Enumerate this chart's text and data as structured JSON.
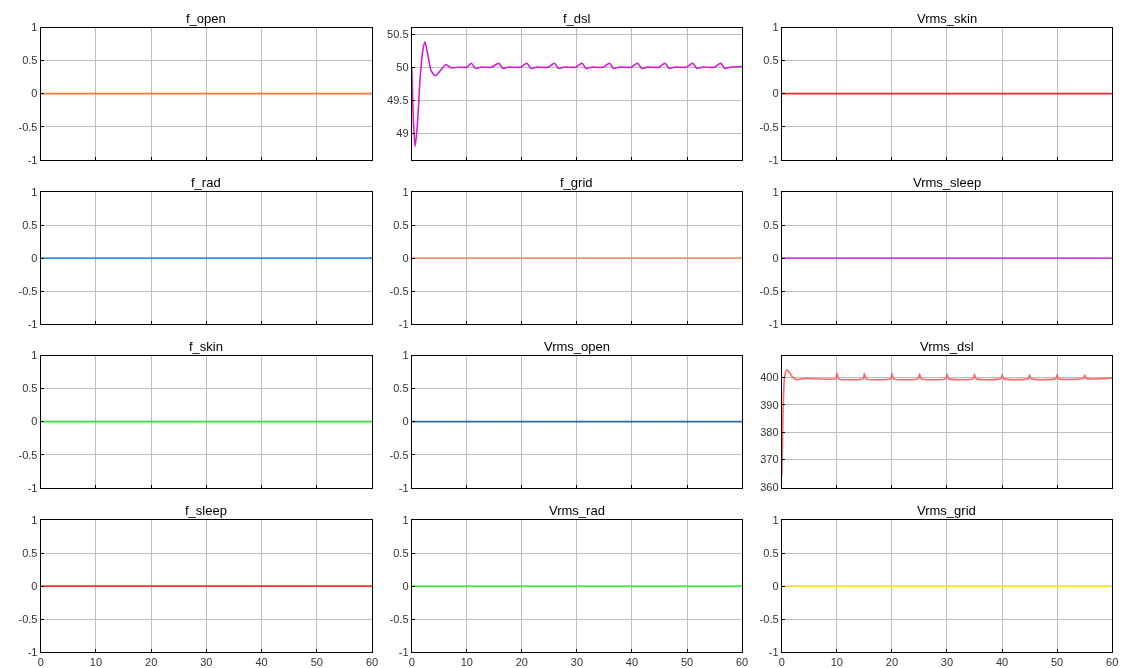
{
  "chart_data": [
    {
      "type": "line",
      "title": "f_open",
      "x": [
        0,
        60
      ],
      "series": [
        {
          "color": "#f07a35",
          "values": [
            0,
            0
          ]
        }
      ],
      "xlim": [
        0,
        60
      ],
      "xticks": [
        0,
        10,
        20,
        30,
        40,
        50,
        60
      ],
      "ylim": [
        -1,
        1
      ],
      "yticks": [
        -1,
        -0.5,
        0,
        0.5,
        1
      ],
      "grid": true,
      "tick_labels": "y"
    },
    {
      "type": "line",
      "title": "f_dsl",
      "x": [
        0,
        0.3,
        0.6,
        1.0,
        1.5,
        2.0,
        2.4,
        2.9,
        3.5,
        4.3,
        5.2,
        6.2,
        7.2,
        8.5,
        10.0,
        10.8,
        11.6,
        12.5,
        14.5,
        15.8,
        16.6,
        17.5,
        19.8,
        20.9,
        21.7,
        22.6,
        24.8,
        25.9,
        26.7,
        27.6,
        29.8,
        30.9,
        31.7,
        32.6,
        34.8,
        35.9,
        36.7,
        37.6,
        39.9,
        41.0,
        41.8,
        42.7,
        44.9,
        46.0,
        46.8,
        47.7,
        49.9,
        51.0,
        51.8,
        52.7,
        55.0,
        56.1,
        56.9,
        57.8,
        60
      ],
      "series": [
        {
          "color": "#d41cd4",
          "values": [
            50.0,
            49.2,
            48.8,
            49.1,
            49.8,
            50.25,
            50.38,
            50.2,
            49.95,
            49.87,
            49.95,
            50.04,
            49.99,
            50.0,
            50.0,
            50.06,
            49.98,
            50.0,
            50.0,
            50.06,
            49.98,
            50.0,
            50.0,
            50.06,
            49.98,
            50.0,
            50.0,
            50.06,
            49.98,
            50.0,
            50.0,
            50.06,
            49.98,
            50.0,
            50.0,
            50.06,
            49.98,
            50.0,
            50.0,
            50.06,
            49.98,
            50.0,
            50.0,
            50.06,
            49.98,
            50.0,
            50.0,
            50.06,
            49.98,
            50.0,
            50.0,
            50.06,
            49.98,
            50.0,
            50.01
          ]
        }
      ],
      "xlim": [
        0,
        60
      ],
      "xticks": [
        0,
        10,
        20,
        30,
        40,
        50,
        60
      ],
      "ylim": [
        48.6,
        50.6
      ],
      "yticks": [
        49,
        49.5,
        50,
        50.5
      ],
      "grid": true,
      "tick_labels": "y"
    },
    {
      "type": "line",
      "title": "Vrms_skin",
      "x": [
        0,
        60
      ],
      "series": [
        {
          "color": "#ff2222",
          "values": [
            0,
            0
          ]
        }
      ],
      "xlim": [
        0,
        60
      ],
      "xticks": [
        0,
        10,
        20,
        30,
        40,
        50,
        60
      ],
      "ylim": [
        -1,
        1
      ],
      "yticks": [
        -1,
        -0.5,
        0,
        0.5,
        1
      ],
      "grid": true,
      "tick_labels": "y"
    },
    {
      "type": "line",
      "title": "f_rad",
      "x": [
        0,
        60
      ],
      "series": [
        {
          "color": "#3a8fd9",
          "values": [
            0,
            0
          ]
        }
      ],
      "xlim": [
        0,
        60
      ],
      "xticks": [
        0,
        10,
        20,
        30,
        40,
        50,
        60
      ],
      "ylim": [
        -1,
        1
      ],
      "yticks": [
        -1,
        -0.5,
        0,
        0.5,
        1
      ],
      "grid": true,
      "tick_labels": "y"
    },
    {
      "type": "line",
      "title": "f_grid",
      "x": [
        0,
        60
      ],
      "series": [
        {
          "color": "#eb9470",
          "values": [
            0,
            0
          ]
        }
      ],
      "xlim": [
        0,
        60
      ],
      "xticks": [
        0,
        10,
        20,
        30,
        40,
        50,
        60
      ],
      "ylim": [
        -1,
        1
      ],
      "yticks": [
        -1,
        -0.5,
        0,
        0.5,
        1
      ],
      "grid": true,
      "tick_labels": "y"
    },
    {
      "type": "line",
      "title": "Vrms_sleep",
      "x": [
        0,
        60
      ],
      "series": [
        {
          "color": "#cc44dd",
          "values": [
            0,
            0
          ]
        }
      ],
      "xlim": [
        0,
        60
      ],
      "xticks": [
        0,
        10,
        20,
        30,
        40,
        50,
        60
      ],
      "ylim": [
        -1,
        1
      ],
      "yticks": [
        -1,
        -0.5,
        0,
        0.5,
        1
      ],
      "grid": true,
      "tick_labels": "y"
    },
    {
      "type": "line",
      "title": "f_skin",
      "x": [
        0,
        60
      ],
      "series": [
        {
          "color": "#33dd33",
          "values": [
            0,
            0
          ]
        }
      ],
      "xlim": [
        0,
        60
      ],
      "xticks": [
        0,
        10,
        20,
        30,
        40,
        50,
        60
      ],
      "ylim": [
        -1,
        1
      ],
      "yticks": [
        -1,
        -0.5,
        0,
        0.5,
        1
      ],
      "grid": true,
      "tick_labels": "y"
    },
    {
      "type": "line",
      "title": "Vrms_open",
      "x": [
        0,
        60
      ],
      "series": [
        {
          "color": "#2a6ab0",
          "values": [
            0,
            0
          ]
        }
      ],
      "xlim": [
        0,
        60
      ],
      "xticks": [
        0,
        10,
        20,
        30,
        40,
        50,
        60
      ],
      "ylim": [
        -1,
        1
      ],
      "yticks": [
        -1,
        -0.5,
        0,
        0.5,
        1
      ],
      "grid": true,
      "tick_labels": "y"
    },
    {
      "type": "line",
      "title": "Vrms_dsl",
      "x": [
        0,
        0.1,
        0.2,
        0.5,
        0.9,
        1.4,
        2.0,
        2.6,
        3.2,
        4.5,
        9.8,
        10.0,
        10.3,
        14.8,
        15.0,
        15.3,
        19.8,
        20.0,
        20.3,
        24.8,
        25.0,
        25.3,
        29.8,
        30.0,
        30.3,
        34.8,
        35.0,
        35.3,
        39.8,
        40.0,
        40.3,
        44.8,
        45.0,
        45.3,
        49.8,
        50.0,
        50.3,
        54.8,
        55.0,
        55.3,
        60
      ],
      "series": [
        {
          "color": "#ff6666",
          "values": [
            364,
            373,
            385,
            400,
            402.8,
            401.8,
            400,
            399.2,
            399.3,
            399.6,
            399.6,
            401.6,
            399.5,
            399.6,
            401.4,
            399.5,
            399.6,
            401.4,
            399.5,
            399.6,
            401.3,
            399.5,
            399.6,
            401.2,
            399.5,
            399.6,
            401.1,
            399.5,
            399.6,
            401.0,
            399.5,
            399.6,
            401.0,
            399.5,
            399.6,
            401.0,
            399.5,
            399.7,
            400.9,
            399.6,
            399.8
          ]
        }
      ],
      "xlim": [
        0,
        60
      ],
      "xticks": [
        0,
        10,
        20,
        30,
        40,
        50,
        60
      ],
      "ylim": [
        359.7,
        408
      ],
      "yticks": [
        360,
        370,
        380,
        390,
        400
      ],
      "grid": true,
      "tick_labels": "y"
    },
    {
      "type": "line",
      "title": "f_sleep",
      "x": [
        0,
        60
      ],
      "series": [
        {
          "color": "#ff3333",
          "values": [
            0,
            0
          ]
        }
      ],
      "xlim": [
        0,
        60
      ],
      "xticks": [
        0,
        10,
        20,
        30,
        40,
        50,
        60
      ],
      "ylim": [
        -1,
        1
      ],
      "yticks": [
        -1,
        -0.5,
        0,
        0.5,
        1
      ],
      "grid": true
    },
    {
      "type": "line",
      "title": "Vrms_rad",
      "x": [
        0,
        60
      ],
      "series": [
        {
          "color": "#44ee44",
          "values": [
            0,
            0
          ]
        }
      ],
      "xlim": [
        0,
        60
      ],
      "xticks": [
        0,
        10,
        20,
        30,
        40,
        50,
        60
      ],
      "ylim": [
        -1,
        1
      ],
      "yticks": [
        -1,
        -0.5,
        0,
        0.5,
        1
      ],
      "grid": true
    },
    {
      "type": "line",
      "title": "Vrms_grid",
      "x": [
        0,
        60
      ],
      "series": [
        {
          "color": "#ffdd33",
          "values": [
            0,
            0
          ]
        }
      ],
      "xlim": [
        0,
        60
      ],
      "xticks": [
        0,
        10,
        20,
        30,
        40,
        50,
        60
      ],
      "ylim": [
        -1,
        1
      ],
      "yticks": [
        -1,
        -0.5,
        0,
        0.5,
        1
      ],
      "grid": true
    }
  ]
}
